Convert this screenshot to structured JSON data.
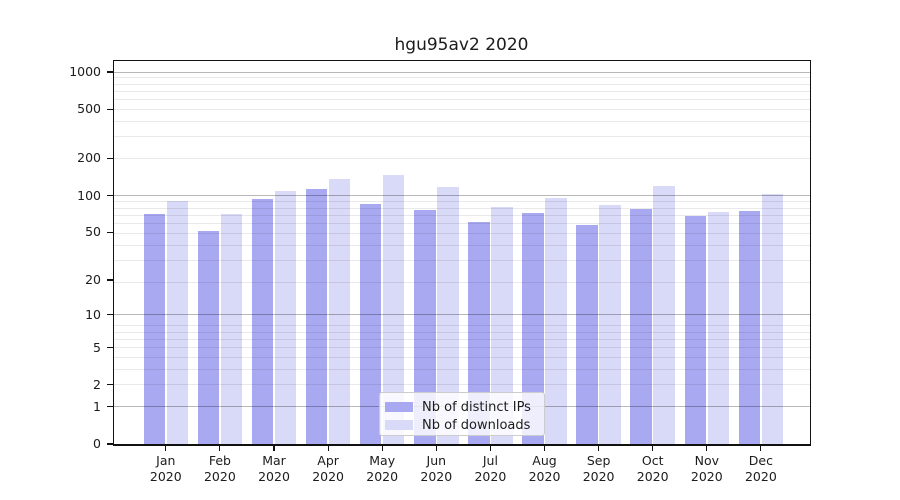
{
  "chart_data": {
    "type": "bar",
    "title": "hgu95av2 2020",
    "categories": [
      "Jan 2020",
      "Feb 2020",
      "Mar 2020",
      "Apr 2020",
      "May 2020",
      "Jun 2020",
      "Jul 2020",
      "Aug 2020",
      "Sep 2020",
      "Oct 2020",
      "Nov 2020",
      "Dec 2020"
    ],
    "series": [
      {
        "name": "Nb of distinct IPs",
        "color": "#a9a9f1",
        "values": [
          70,
          51,
          93,
          112,
          86,
          76,
          61,
          72,
          57,
          77,
          68,
          75
        ]
      },
      {
        "name": "Nb of downloads",
        "color": "#d9d9f8",
        "values": [
          91,
          70,
          109,
          137,
          148,
          117,
          80,
          95,
          84,
          120,
          74,
          102
        ]
      }
    ],
    "xlabel": "",
    "ylabel": "",
    "yscale": "log1p",
    "ytick_labels": [
      "0",
      "1",
      "2",
      "5",
      "10",
      "20",
      "50",
      "100",
      "200",
      "500",
      "1000"
    ],
    "ytick_values": [
      0,
      1,
      2,
      5,
      10,
      20,
      50,
      100,
      200,
      500,
      1000
    ],
    "ylim": [
      0,
      1230
    ],
    "grid": "on",
    "legend_position": "lower center"
  }
}
